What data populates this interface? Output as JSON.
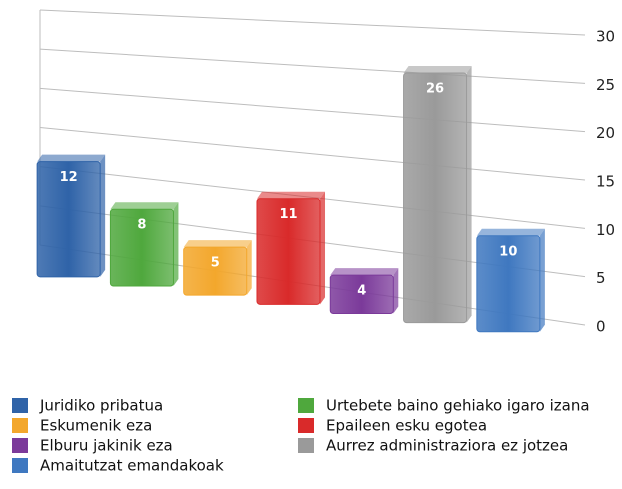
{
  "chart_data": {
    "type": "bar",
    "series": [
      {
        "name": "Juridiko pribatua",
        "color": "#2f63a8",
        "values": [
          12
        ]
      },
      {
        "name": "Urtebete baino gehiako igaro izana",
        "color": "#4fa83d",
        "values": [
          8
        ]
      },
      {
        "name": "Eskumenik eza",
        "color": "#f3a72c",
        "values": [
          5
        ]
      },
      {
        "name": "Epaileen esku egotea",
        "color": "#d92a2a",
        "values": [
          11
        ]
      },
      {
        "name": "Elburu jakinik eza",
        "color": "#7b3a9a",
        "values": [
          4
        ]
      },
      {
        "name": "Aurrez administraziora ez jotzea",
        "color": "#9a9a9a",
        "values": [
          26
        ]
      },
      {
        "name": "Amaitutzat emandakoak",
        "color": "#3f78c0",
        "values": [
          10
        ]
      }
    ],
    "ylim": [
      0,
      30
    ],
    "yticks": [
      0,
      5,
      10,
      15,
      20,
      25,
      30
    ],
    "grid": true
  }
}
